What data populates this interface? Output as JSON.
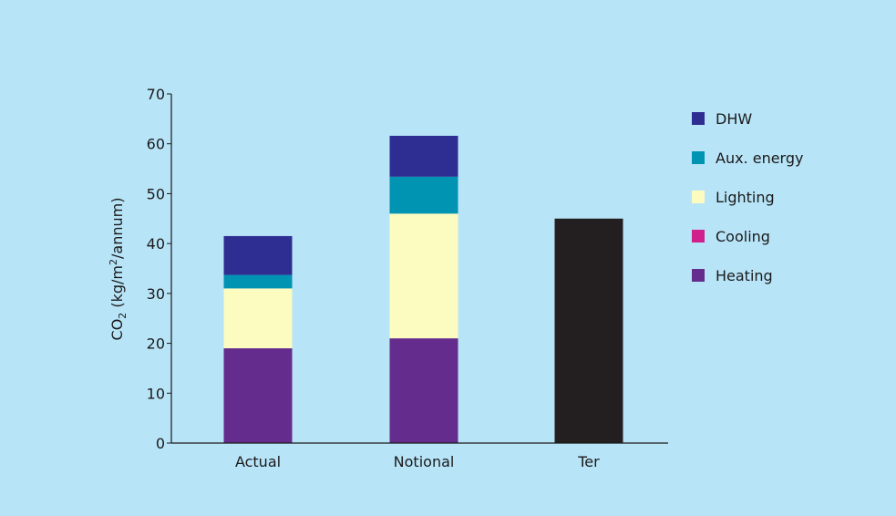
{
  "chart_data": {
    "type": "bar",
    "stacked": true,
    "categories": [
      "Actual",
      "Notional",
      "Ter"
    ],
    "series": [
      {
        "name": "Heating",
        "values": [
          19,
          21,
          0
        ],
        "color": "#642c8c"
      },
      {
        "name": "Cooling",
        "values": [
          0,
          0,
          0
        ],
        "color": "#d0208c"
      },
      {
        "name": "Lighting",
        "values": [
          12,
          25,
          0
        ],
        "color": "#fcfbc0"
      },
      {
        "name": "Aux. energy",
        "values": [
          2.7,
          7.4,
          0
        ],
        "color": "#0093b2"
      },
      {
        "name": "DHW",
        "values": [
          7.8,
          8.2,
          0
        ],
        "color": "#2e2e92"
      },
      {
        "name": "",
        "values": [
          0,
          0,
          45
        ],
        "color": "#231f20"
      }
    ],
    "legend_order": [
      "DHW",
      "Aux. energy",
      "Lighting",
      "Cooling",
      "Heating"
    ],
    "ylabel": {
      "main": "CO",
      "sub": "2",
      "unit_a": " (kg/m",
      "sup": "2",
      "unit_b": "/annum)"
    },
    "xlabel": "",
    "ylim": [
      0,
      70
    ],
    "yticks": [
      0,
      10,
      20,
      30,
      40,
      50,
      60,
      70
    ],
    "legend_position": "right",
    "grid": false
  }
}
